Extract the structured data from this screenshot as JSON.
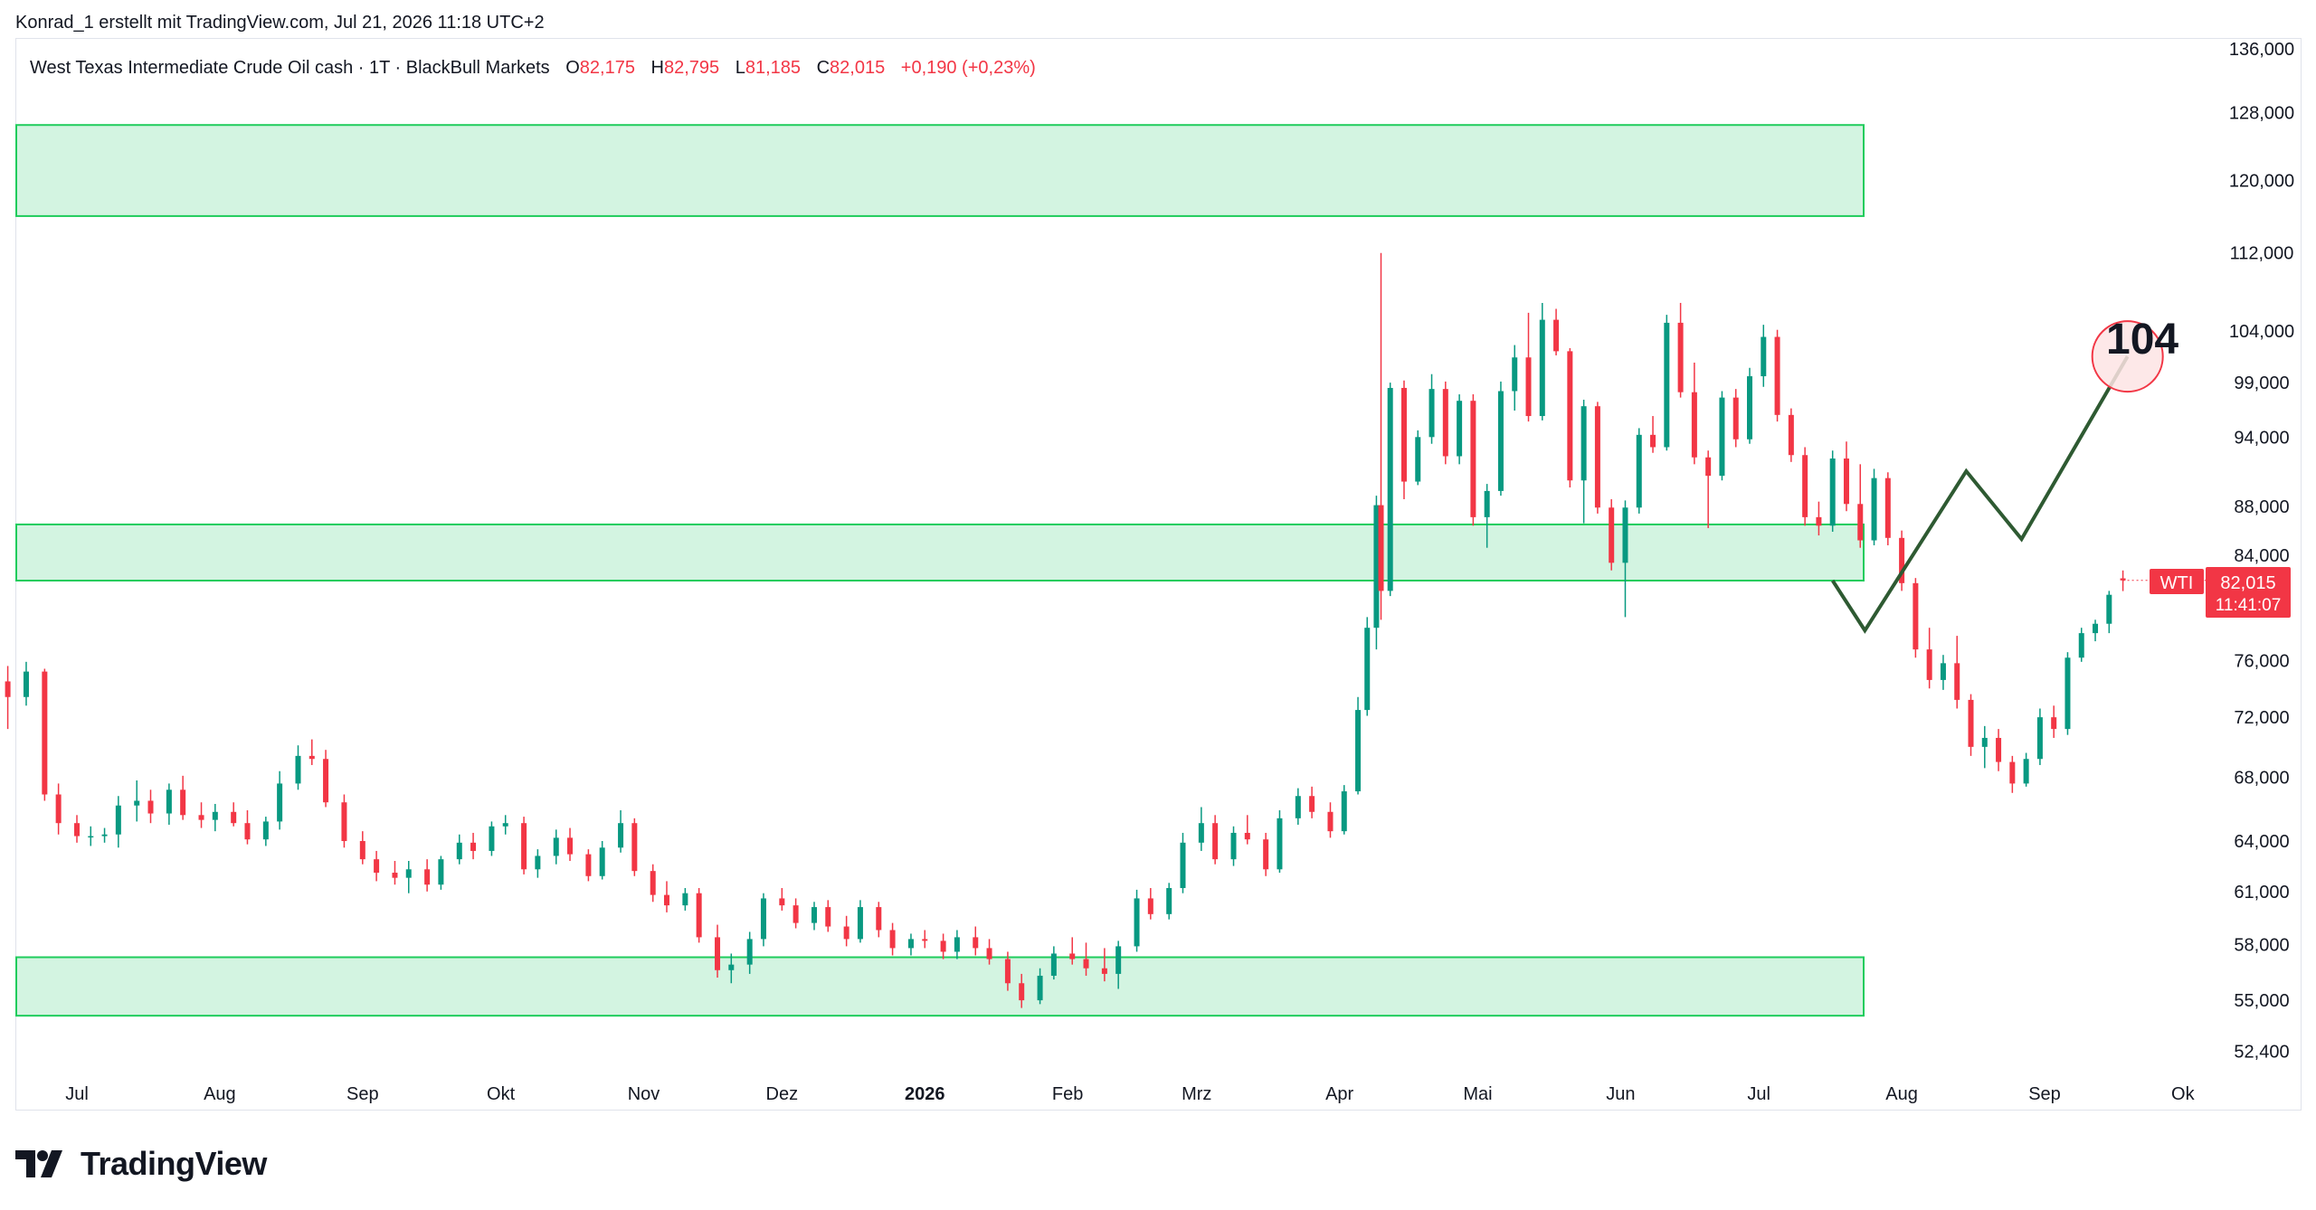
{
  "attribution": "Konrad_1 erstellt mit TradingView.com, Jul 21, 2026 11:18 UTC+2",
  "legend": {
    "instrument": "West Texas Intermediate Crude Oil cash · 1T · BlackBull Markets",
    "open_label": "O",
    "open": "82,175",
    "high_label": "H",
    "high": "82,795",
    "low_label": "L",
    "low": "81,185",
    "close_label": "C",
    "close": "82,015",
    "change": "+0,190 (+0,23%)"
  },
  "price_tag": {
    "symbol": "WTI",
    "price": "82,015",
    "countdown": "11:41:07"
  },
  "target_label": "104",
  "brand": "TradingView",
  "colors": {
    "up": "#089981",
    "down": "#f23645",
    "zone_fill": "#d3f4e1",
    "zone_border": "#1fcc5c",
    "projection": "#2e5a32",
    "target_fill": "#fde4e4",
    "target_border": "#f23645"
  },
  "chart_data": {
    "type": "candlestick",
    "scale": "log",
    "y_ticks": [
      136000,
      128000,
      120000,
      112000,
      104000,
      99000,
      94000,
      88000,
      84000,
      80000,
      76000,
      72000,
      68000,
      64000,
      61000,
      58000,
      55000,
      52400
    ],
    "x_tick_labels": [
      "Jul",
      "Aug",
      "Sep",
      "Okt",
      "Nov",
      "Dez",
      "2026",
      "Feb",
      "Mrz",
      "Apr",
      "Mai",
      "Jun",
      "Jul",
      "Aug",
      "Sep",
      "Ok"
    ],
    "x_tick_dates": [
      "2025-07-01",
      "2025-08-01",
      "2025-09-01",
      "2025-10-01",
      "2025-11-01",
      "2025-12-01",
      "2026-01-01",
      "2026-02-01",
      "2026-03-01",
      "2026-04-01",
      "2026-05-01",
      "2026-06-01",
      "2026-07-01",
      "2026-08-01",
      "2026-09-01",
      "2026-10-01"
    ],
    "zones": [
      {
        "from": 116000,
        "to": 126500
      },
      {
        "from": 82000,
        "to": 86500
      },
      {
        "from": 54200,
        "to": 57300
      }
    ],
    "projection": [
      {
        "date": "2026-07-17",
        "value": 82000
      },
      {
        "date": "2026-07-24",
        "value": 78200
      },
      {
        "date": "2026-08-15",
        "value": 91000
      },
      {
        "date": "2026-08-27",
        "value": 85300
      },
      {
        "date": "2026-09-19",
        "value": 101500
      }
    ],
    "target_circle": {
      "date": "2026-09-19",
      "value": 101500
    },
    "candles": [
      {
        "d": "2025-06-16",
        "o": 74.5,
        "h": 75.6,
        "l": 71.2,
        "c": 73.4
      },
      {
        "d": "2025-06-20",
        "o": 73.4,
        "h": 75.9,
        "l": 72.8,
        "c": 75.2
      },
      {
        "d": "2025-06-24",
        "o": 75.2,
        "h": 75.4,
        "l": 66.5,
        "c": 66.9
      },
      {
        "d": "2025-06-27",
        "o": 66.9,
        "h": 67.6,
        "l": 64.4,
        "c": 65.1
      },
      {
        "d": "2025-07-01",
        "o": 65.1,
        "h": 65.6,
        "l": 63.9,
        "c": 64.3
      },
      {
        "d": "2025-07-04",
        "o": 64.3,
        "h": 64.9,
        "l": 63.7,
        "c": 64.3
      },
      {
        "d": "2025-07-07",
        "o": 64.3,
        "h": 64.8,
        "l": 63.9,
        "c": 64.4
      },
      {
        "d": "2025-07-10",
        "o": 64.4,
        "h": 66.8,
        "l": 63.6,
        "c": 66.2
      },
      {
        "d": "2025-07-14",
        "o": 66.2,
        "h": 67.8,
        "l": 65.2,
        "c": 66.5
      },
      {
        "d": "2025-07-17",
        "o": 66.5,
        "h": 67.2,
        "l": 65.1,
        "c": 65.7
      },
      {
        "d": "2025-07-21",
        "o": 65.7,
        "h": 67.6,
        "l": 65.0,
        "c": 67.2
      },
      {
        "d": "2025-07-24",
        "o": 67.2,
        "h": 68.1,
        "l": 65.3,
        "c": 65.6
      },
      {
        "d": "2025-07-28",
        "o": 65.6,
        "h": 66.4,
        "l": 64.8,
        "c": 65.3
      },
      {
        "d": "2025-07-31",
        "o": 65.3,
        "h": 66.3,
        "l": 64.6,
        "c": 65.8
      },
      {
        "d": "2025-08-04",
        "o": 65.8,
        "h": 66.4,
        "l": 64.9,
        "c": 65.1
      },
      {
        "d": "2025-08-07",
        "o": 65.1,
        "h": 65.9,
        "l": 63.8,
        "c": 64.1
      },
      {
        "d": "2025-08-11",
        "o": 64.1,
        "h": 65.5,
        "l": 63.7,
        "c": 65.2
      },
      {
        "d": "2025-08-14",
        "o": 65.2,
        "h": 68.4,
        "l": 64.7,
        "c": 67.6
      },
      {
        "d": "2025-08-18",
        "o": 67.6,
        "h": 70.1,
        "l": 67.2,
        "c": 69.4
      },
      {
        "d": "2025-08-21",
        "o": 69.4,
        "h": 70.5,
        "l": 68.8,
        "c": 69.2
      },
      {
        "d": "2025-08-24",
        "o": 69.2,
        "h": 69.8,
        "l": 66.1,
        "c": 66.4
      },
      {
        "d": "2025-08-28",
        "o": 66.4,
        "h": 66.9,
        "l": 63.6,
        "c": 64.0
      },
      {
        "d": "2025-09-01",
        "o": 64.0,
        "h": 64.6,
        "l": 62.6,
        "c": 62.9
      },
      {
        "d": "2025-09-04",
        "o": 62.9,
        "h": 63.4,
        "l": 61.6,
        "c": 62.1
      },
      {
        "d": "2025-09-08",
        "o": 62.1,
        "h": 62.8,
        "l": 61.4,
        "c": 61.8
      },
      {
        "d": "2025-09-11",
        "o": 61.8,
        "h": 62.8,
        "l": 60.9,
        "c": 62.3
      },
      {
        "d": "2025-09-15",
        "o": 62.3,
        "h": 62.9,
        "l": 61.0,
        "c": 61.4
      },
      {
        "d": "2025-09-18",
        "o": 61.4,
        "h": 63.1,
        "l": 61.1,
        "c": 62.9
      },
      {
        "d": "2025-09-22",
        "o": 62.9,
        "h": 64.4,
        "l": 62.6,
        "c": 63.9
      },
      {
        "d": "2025-09-25",
        "o": 63.9,
        "h": 64.5,
        "l": 62.9,
        "c": 63.4
      },
      {
        "d": "2025-09-29",
        "o": 63.4,
        "h": 65.2,
        "l": 63.1,
        "c": 64.9
      },
      {
        "d": "2025-10-02",
        "o": 64.9,
        "h": 65.6,
        "l": 64.4,
        "c": 65.1
      },
      {
        "d": "2025-10-06",
        "o": 65.1,
        "h": 65.5,
        "l": 62.0,
        "c": 62.3
      },
      {
        "d": "2025-10-09",
        "o": 62.3,
        "h": 63.5,
        "l": 61.8,
        "c": 63.1
      },
      {
        "d": "2025-10-13",
        "o": 63.1,
        "h": 64.7,
        "l": 62.6,
        "c": 64.2
      },
      {
        "d": "2025-10-16",
        "o": 64.2,
        "h": 64.8,
        "l": 62.8,
        "c": 63.2
      },
      {
        "d": "2025-10-20",
        "o": 63.2,
        "h": 63.5,
        "l": 61.6,
        "c": 61.9
      },
      {
        "d": "2025-10-23",
        "o": 61.9,
        "h": 64.0,
        "l": 61.7,
        "c": 63.6
      },
      {
        "d": "2025-10-27",
        "o": 63.6,
        "h": 65.9,
        "l": 63.3,
        "c": 65.1
      },
      {
        "d": "2025-10-30",
        "o": 65.1,
        "h": 65.4,
        "l": 61.9,
        "c": 62.2
      },
      {
        "d": "2025-11-03",
        "o": 62.2,
        "h": 62.6,
        "l": 60.4,
        "c": 60.8
      },
      {
        "d": "2025-11-06",
        "o": 60.8,
        "h": 61.6,
        "l": 59.8,
        "c": 60.2
      },
      {
        "d": "2025-11-10",
        "o": 60.2,
        "h": 61.2,
        "l": 59.9,
        "c": 60.9
      },
      {
        "d": "2025-11-13",
        "o": 60.9,
        "h": 61.2,
        "l": 58.1,
        "c": 58.4
      },
      {
        "d": "2025-11-17",
        "o": 58.4,
        "h": 59.1,
        "l": 56.2,
        "c": 56.6
      },
      {
        "d": "2025-11-20",
        "o": 56.6,
        "h": 57.5,
        "l": 55.9,
        "c": 56.9
      },
      {
        "d": "2025-11-24",
        "o": 56.9,
        "h": 58.7,
        "l": 56.4,
        "c": 58.3
      },
      {
        "d": "2025-11-27",
        "o": 58.3,
        "h": 60.9,
        "l": 57.9,
        "c": 60.6
      },
      {
        "d": "2025-12-01",
        "o": 60.6,
        "h": 61.2,
        "l": 59.9,
        "c": 60.2
      },
      {
        "d": "2025-12-04",
        "o": 60.2,
        "h": 60.6,
        "l": 58.9,
        "c": 59.2
      },
      {
        "d": "2025-12-08",
        "o": 59.2,
        "h": 60.4,
        "l": 58.8,
        "c": 60.1
      },
      {
        "d": "2025-12-11",
        "o": 60.1,
        "h": 60.5,
        "l": 58.7,
        "c": 59.0
      },
      {
        "d": "2025-12-15",
        "o": 59.0,
        "h": 59.6,
        "l": 57.9,
        "c": 58.3
      },
      {
        "d": "2025-12-18",
        "o": 58.3,
        "h": 60.5,
        "l": 58.1,
        "c": 60.1
      },
      {
        "d": "2025-12-22",
        "o": 60.1,
        "h": 60.4,
        "l": 58.4,
        "c": 58.8
      },
      {
        "d": "2025-12-25",
        "o": 58.8,
        "h": 59.2,
        "l": 57.4,
        "c": 57.8
      },
      {
        "d": "2025-12-29",
        "o": 57.8,
        "h": 58.6,
        "l": 57.4,
        "c": 58.3
      },
      {
        "d": "2026-01-01",
        "o": 58.3,
        "h": 58.8,
        "l": 57.8,
        "c": 58.2
      },
      {
        "d": "2026-01-05",
        "o": 58.2,
        "h": 58.6,
        "l": 57.2,
        "c": 57.6
      },
      {
        "d": "2026-01-08",
        "o": 57.6,
        "h": 58.8,
        "l": 57.2,
        "c": 58.4
      },
      {
        "d": "2026-01-12",
        "o": 58.4,
        "h": 59.0,
        "l": 57.4,
        "c": 57.8
      },
      {
        "d": "2026-01-15",
        "o": 57.8,
        "h": 58.3,
        "l": 56.9,
        "c": 57.2
      },
      {
        "d": "2026-01-19",
        "o": 57.2,
        "h": 57.6,
        "l": 55.5,
        "c": 55.9
      },
      {
        "d": "2026-01-22",
        "o": 55.9,
        "h": 56.4,
        "l": 54.6,
        "c": 55.0
      },
      {
        "d": "2026-01-26",
        "o": 55.0,
        "h": 56.7,
        "l": 54.8,
        "c": 56.3
      },
      {
        "d": "2026-01-29",
        "o": 56.3,
        "h": 57.9,
        "l": 56.1,
        "c": 57.5
      },
      {
        "d": "2026-02-02",
        "o": 57.5,
        "h": 58.4,
        "l": 56.9,
        "c": 57.2
      },
      {
        "d": "2026-02-05",
        "o": 57.2,
        "h": 58.1,
        "l": 56.3,
        "c": 56.7
      },
      {
        "d": "2026-02-09",
        "o": 56.7,
        "h": 57.8,
        "l": 56.0,
        "c": 56.4
      },
      {
        "d": "2026-02-12",
        "o": 56.4,
        "h": 58.2,
        "l": 55.6,
        "c": 57.9
      },
      {
        "d": "2026-02-16",
        "o": 57.9,
        "h": 61.1,
        "l": 57.6,
        "c": 60.6
      },
      {
        "d": "2026-02-19",
        "o": 60.6,
        "h": 61.2,
        "l": 59.4,
        "c": 59.7
      },
      {
        "d": "2026-02-23",
        "o": 59.7,
        "h": 61.5,
        "l": 59.4,
        "c": 61.2
      },
      {
        "d": "2026-02-26",
        "o": 61.2,
        "h": 64.5,
        "l": 60.9,
        "c": 63.9
      },
      {
        "d": "2026-03-02",
        "o": 63.9,
        "h": 66.1,
        "l": 63.4,
        "c": 65.1
      },
      {
        "d": "2026-03-05",
        "o": 65.1,
        "h": 65.6,
        "l": 62.6,
        "c": 62.9
      },
      {
        "d": "2026-03-09",
        "o": 62.9,
        "h": 64.9,
        "l": 62.5,
        "c": 64.5
      },
      {
        "d": "2026-03-12",
        "o": 64.5,
        "h": 65.6,
        "l": 63.8,
        "c": 64.1
      },
      {
        "d": "2026-03-16",
        "o": 64.1,
        "h": 64.5,
        "l": 61.9,
        "c": 62.3
      },
      {
        "d": "2026-03-19",
        "o": 62.3,
        "h": 65.9,
        "l": 62.1,
        "c": 65.4
      },
      {
        "d": "2026-03-23",
        "o": 65.4,
        "h": 67.3,
        "l": 65.0,
        "c": 66.8
      },
      {
        "d": "2026-03-26",
        "o": 66.8,
        "h": 67.4,
        "l": 65.4,
        "c": 65.8
      },
      {
        "d": "2026-03-30",
        "o": 65.8,
        "h": 66.4,
        "l": 64.2,
        "c": 64.6
      },
      {
        "d": "2026-04-02",
        "o": 64.6,
        "h": 67.5,
        "l": 64.4,
        "c": 67.1
      },
      {
        "d": "2026-04-05",
        "o": 67.1,
        "h": 73.4,
        "l": 66.9,
        "c": 72.5
      },
      {
        "d": "2026-04-07",
        "o": 72.5,
        "h": 79.2,
        "l": 72.1,
        "c": 78.4
      },
      {
        "d": "2026-04-09",
        "o": 78.4,
        "h": 88.9,
        "l": 76.8,
        "c": 88.1
      },
      {
        "d": "2026-04-10",
        "o": 88.1,
        "h": 112.0,
        "l": 79.0,
        "c": 81.2
      },
      {
        "d": "2026-04-12",
        "o": 81.2,
        "h": 99.0,
        "l": 80.8,
        "c": 98.5
      },
      {
        "d": "2026-04-15",
        "o": 98.5,
        "h": 99.2,
        "l": 88.6,
        "c": 90.1
      },
      {
        "d": "2026-04-18",
        "o": 90.1,
        "h": 94.6,
        "l": 89.8,
        "c": 94.0
      },
      {
        "d": "2026-04-21",
        "o": 94.0,
        "h": 99.8,
        "l": 93.4,
        "c": 98.4
      },
      {
        "d": "2026-04-24",
        "o": 98.4,
        "h": 99.1,
        "l": 91.6,
        "c": 92.3
      },
      {
        "d": "2026-04-27",
        "o": 92.3,
        "h": 97.9,
        "l": 91.6,
        "c": 97.3
      },
      {
        "d": "2026-04-30",
        "o": 97.3,
        "h": 97.9,
        "l": 86.4,
        "c": 87.1
      },
      {
        "d": "2026-05-03",
        "o": 87.1,
        "h": 89.9,
        "l": 84.6,
        "c": 89.3
      },
      {
        "d": "2026-05-06",
        "o": 89.3,
        "h": 99.1,
        "l": 88.9,
        "c": 98.2
      },
      {
        "d": "2026-05-09",
        "o": 98.2,
        "h": 102.6,
        "l": 96.4,
        "c": 101.4
      },
      {
        "d": "2026-05-12",
        "o": 101.4,
        "h": 105.8,
        "l": 95.4,
        "c": 95.9
      },
      {
        "d": "2026-05-15",
        "o": 95.9,
        "h": 106.8,
        "l": 95.5,
        "c": 105.1
      },
      {
        "d": "2026-05-18",
        "o": 105.1,
        "h": 106.2,
        "l": 101.6,
        "c": 102.0
      },
      {
        "d": "2026-05-21",
        "o": 102.0,
        "h": 102.3,
        "l": 89.6,
        "c": 90.2
      },
      {
        "d": "2026-05-24",
        "o": 90.2,
        "h": 97.4,
        "l": 86.6,
        "c": 96.8
      },
      {
        "d": "2026-05-27",
        "o": 96.8,
        "h": 97.2,
        "l": 87.4,
        "c": 87.9
      },
      {
        "d": "2026-05-30",
        "o": 87.9,
        "h": 88.6,
        "l": 82.8,
        "c": 83.4
      },
      {
        "d": "2026-06-02",
        "o": 83.4,
        "h": 88.5,
        "l": 79.2,
        "c": 87.9
      },
      {
        "d": "2026-06-05",
        "o": 87.9,
        "h": 94.8,
        "l": 87.4,
        "c": 94.2
      },
      {
        "d": "2026-06-08",
        "o": 94.2,
        "h": 95.9,
        "l": 92.6,
        "c": 93.1
      },
      {
        "d": "2026-06-11",
        "o": 93.1,
        "h": 105.6,
        "l": 92.8,
        "c": 104.8
      },
      {
        "d": "2026-06-14",
        "o": 104.8,
        "h": 106.8,
        "l": 97.6,
        "c": 98.1
      },
      {
        "d": "2026-06-17",
        "o": 98.1,
        "h": 100.9,
        "l": 91.6,
        "c": 92.2
      },
      {
        "d": "2026-06-20",
        "o": 92.2,
        "h": 92.8,
        "l": 86.2,
        "c": 90.6
      },
      {
        "d": "2026-06-23",
        "o": 90.6,
        "h": 98.2,
        "l": 90.2,
        "c": 97.6
      },
      {
        "d": "2026-06-26",
        "o": 97.6,
        "h": 98.4,
        "l": 93.1,
        "c": 93.8
      },
      {
        "d": "2026-06-29",
        "o": 93.8,
        "h": 100.4,
        "l": 93.4,
        "c": 99.6
      },
      {
        "d": "2026-07-02",
        "o": 99.6,
        "h": 104.6,
        "l": 98.6,
        "c": 103.4
      },
      {
        "d": "2026-07-05",
        "o": 103.4,
        "h": 104.1,
        "l": 95.4,
        "c": 96.0
      },
      {
        "d": "2026-07-08",
        "o": 96.0,
        "h": 96.6,
        "l": 91.8,
        "c": 92.4
      },
      {
        "d": "2026-07-11",
        "o": 92.4,
        "h": 93.1,
        "l": 86.4,
        "c": 87.1
      },
      {
        "d": "2026-07-14",
        "o": 87.1,
        "h": 88.4,
        "l": 85.6,
        "c": 86.4
      },
      {
        "d": "2026-07-17",
        "o": 86.4,
        "h": 92.8,
        "l": 85.9,
        "c": 92.1
      },
      {
        "d": "2026-07-20",
        "o": 92.1,
        "h": 93.6,
        "l": 87.6,
        "c": 88.2
      },
      {
        "d": "2026-07-23",
        "o": 88.2,
        "h": 91.6,
        "l": 84.6,
        "c": 85.2
      },
      {
        "d": "2026-07-26",
        "o": 85.2,
        "h": 91.2,
        "l": 84.8,
        "c": 90.4
      },
      {
        "d": "2026-07-29",
        "o": 90.4,
        "h": 90.9,
        "l": 84.8,
        "c": 85.4
      },
      {
        "d": "2026-08-01",
        "o": 85.4,
        "h": 86.0,
        "l": 81.2,
        "c": 81.8
      },
      {
        "d": "2026-08-04",
        "o": 81.8,
        "h": 82.2,
        "l": 76.2,
        "c": 76.8
      },
      {
        "d": "2026-08-07",
        "o": 76.8,
        "h": 78.4,
        "l": 74.0,
        "c": 74.6
      },
      {
        "d": "2026-08-10",
        "o": 74.6,
        "h": 76.4,
        "l": 73.9,
        "c": 75.8
      },
      {
        "d": "2026-08-13",
        "o": 75.8,
        "h": 77.8,
        "l": 72.6,
        "c": 73.2
      },
      {
        "d": "2026-08-16",
        "o": 73.2,
        "h": 73.6,
        "l": 69.4,
        "c": 70.0
      },
      {
        "d": "2026-08-19",
        "o": 70.0,
        "h": 71.4,
        "l": 68.6,
        "c": 70.6
      },
      {
        "d": "2026-08-22",
        "o": 70.6,
        "h": 71.2,
        "l": 68.4,
        "c": 69.0
      },
      {
        "d": "2026-08-25",
        "o": 69.0,
        "h": 69.4,
        "l": 67.0,
        "c": 67.6
      },
      {
        "d": "2026-08-28",
        "o": 67.6,
        "h": 69.6,
        "l": 67.4,
        "c": 69.2
      },
      {
        "d": "2026-08-31",
        "o": 69.2,
        "h": 72.6,
        "l": 68.8,
        "c": 72.0
      },
      {
        "d": "2026-09-03",
        "o": 72.0,
        "h": 72.8,
        "l": 70.6,
        "c": 71.2
      },
      {
        "d": "2026-09-06",
        "o": 71.2,
        "h": 76.6,
        "l": 70.8,
        "c": 76.2
      },
      {
        "d": "2026-09-09",
        "o": 76.2,
        "h": 78.4,
        "l": 75.9,
        "c": 78.0
      },
      {
        "d": "2026-09-12",
        "o": 78.0,
        "h": 79.0,
        "l": 77.4,
        "c": 78.7
      },
      {
        "d": "2026-09-15",
        "o": 78.7,
        "h": 81.2,
        "l": 78.0,
        "c": 80.9
      },
      {
        "d": "2026-09-18",
        "o": 82.175,
        "h": 82.795,
        "l": 81.185,
        "c": 82.015
      }
    ]
  }
}
